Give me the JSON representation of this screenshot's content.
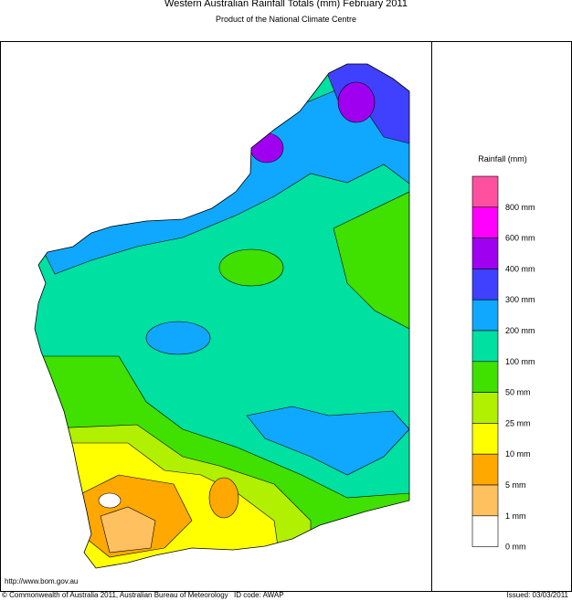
{
  "header": {
    "title": "Western Australian Rainfall Totals (mm) February 2011",
    "subtitle": "Product of the National Climate Centre"
  },
  "legend": {
    "title": "Rainfall (mm)",
    "items": [
      {
        "label": "800 mm",
        "color": "#ff50a0"
      },
      {
        "label": "600 mm",
        "color": "#ff00ff"
      },
      {
        "label": "400 mm",
        "color": "#a000f0"
      },
      {
        "label": "300 mm",
        "color": "#4040ff"
      },
      {
        "label": "200 mm",
        "color": "#10a8ff"
      },
      {
        "label": "100 mm",
        "color": "#00e0a0"
      },
      {
        "label": "50 mm",
        "color": "#40e000"
      },
      {
        "label": "25 mm",
        "color": "#b0f000"
      },
      {
        "label": "10 mm",
        "color": "#ffff00"
      },
      {
        "label": "5 mm",
        "color": "#ffa800"
      },
      {
        "label": "1 mm",
        "color": "#ffc060"
      },
      {
        "label": "0 mm",
        "color": "#ffffff"
      }
    ]
  },
  "footer": {
    "url": "http://www.bom.gov.au",
    "copyright": "© Commonwealth of Australia 2011, Australian Bureau of Meteorology",
    "id_code": "ID code: AWAP",
    "issued": "Issued: 03/03/2011"
  }
}
